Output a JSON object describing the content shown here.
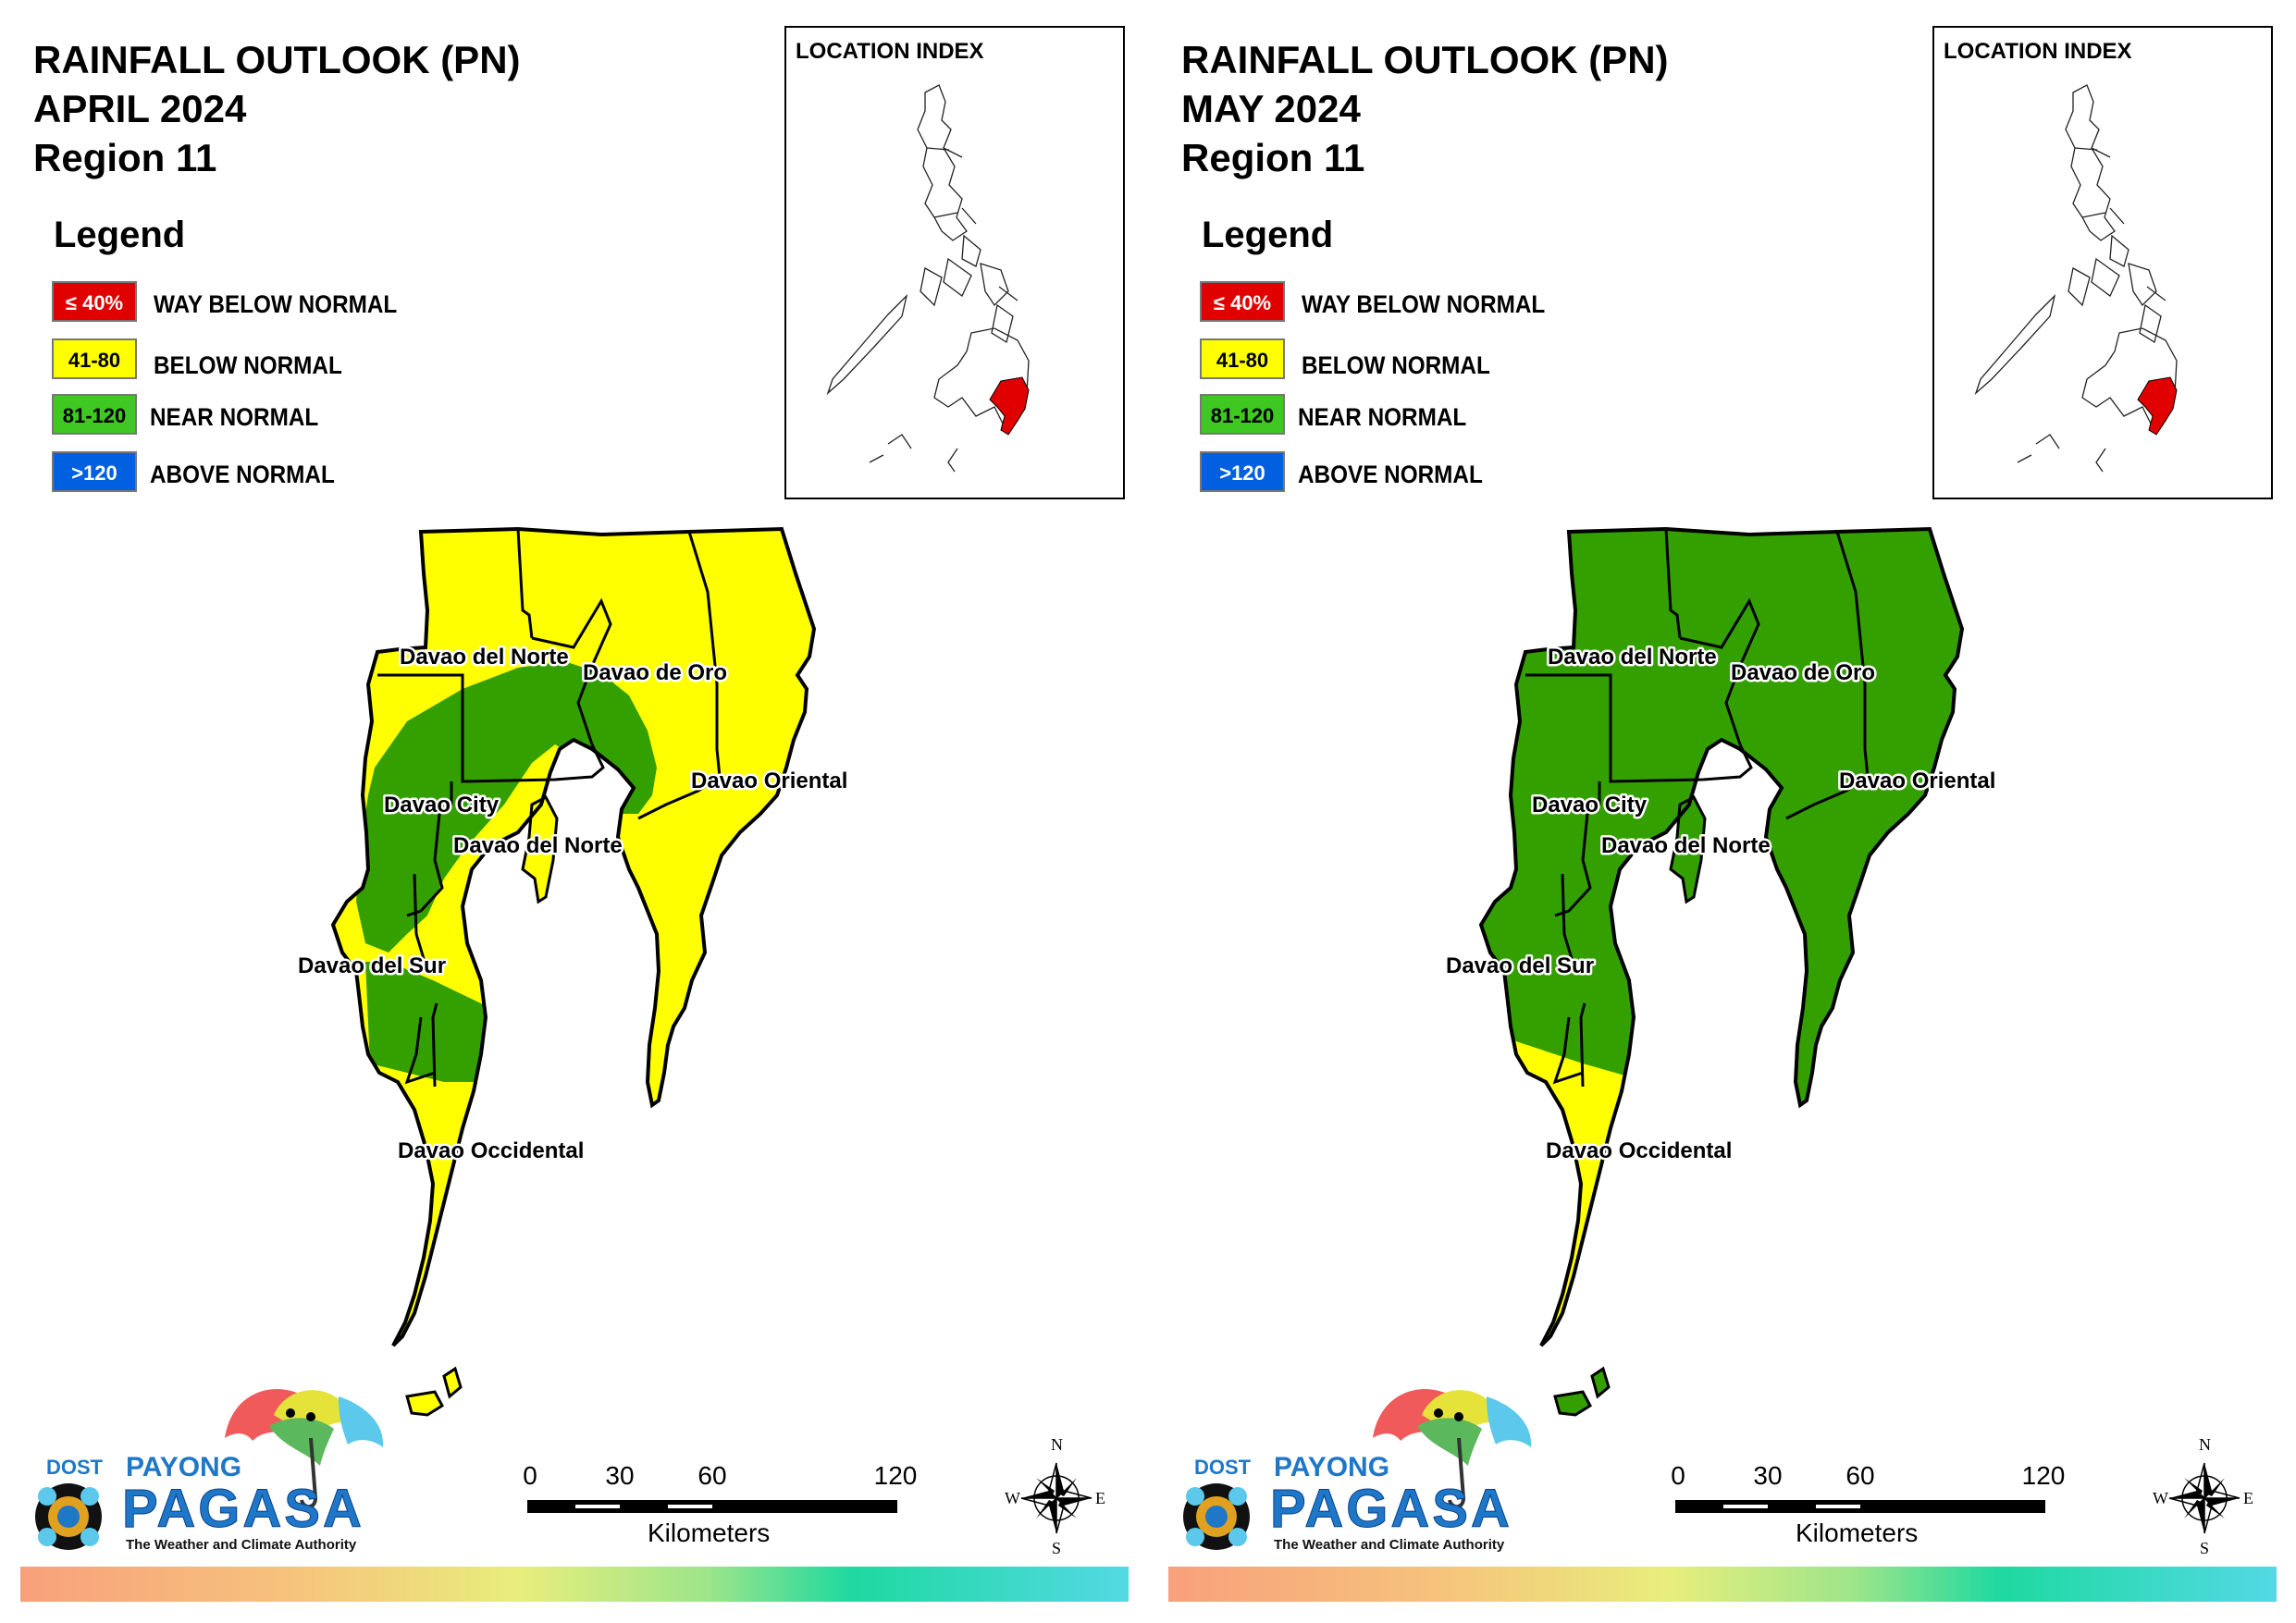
{
  "panels": [
    {
      "title_line1": "RAINFALL OUTLOOK (PN)",
      "title_line2": "APRIL 2024",
      "title_line3": "Region 11",
      "fill_main": "#ffff00",
      "fill_band": "#33a000"
    },
    {
      "title_line1": "RAINFALL OUTLOOK (PN)",
      "title_line2": "MAY 2024",
      "title_line3": "Region 11",
      "fill_main": "#33a000",
      "fill_band": "#ffff00"
    }
  ],
  "legend": {
    "title": "Legend",
    "items": [
      {
        "swatch": "≤ 40%",
        "label": "WAY BELOW NORMAL",
        "color": "#e00000",
        "text_color": "#ffffff"
      },
      {
        "swatch": "41-80",
        "label": "BELOW NORMAL",
        "color": "#ffff00",
        "text_color": "#000000"
      },
      {
        "swatch": "81-120",
        "label": "NEAR NORMAL",
        "color": "#3ec821",
        "text_color": "#000000"
      },
      {
        "swatch": ">120",
        "label": "ABOVE NORMAL",
        "color": "#0060e0",
        "text_color": "#ffffff"
      }
    ]
  },
  "location_index": {
    "title": "LOCATION INDEX",
    "highlight_color": "#e00000"
  },
  "map_labels": {
    "davao_del_norte_1": "Davao del Norte",
    "davao_de_oro": "Davao de Oro",
    "davao_oriental": "Davao Oriental",
    "davao_city": "Davao City",
    "davao_del_norte_2": "Davao del Norte",
    "davao_del_sur": "Davao del Sur",
    "davao_occidental": "Davao Occidental"
  },
  "scale": {
    "ticks": [
      "0",
      "30",
      "60",
      "120"
    ],
    "unit": "Kilometers"
  },
  "compass": {
    "n": "N",
    "e": "E",
    "s": "S",
    "w": "W"
  },
  "logo": {
    "dost": "DOST",
    "payong": "PAYONG",
    "pagasa": "PAGASA",
    "tagline": "The Weather and Climate Authority"
  }
}
